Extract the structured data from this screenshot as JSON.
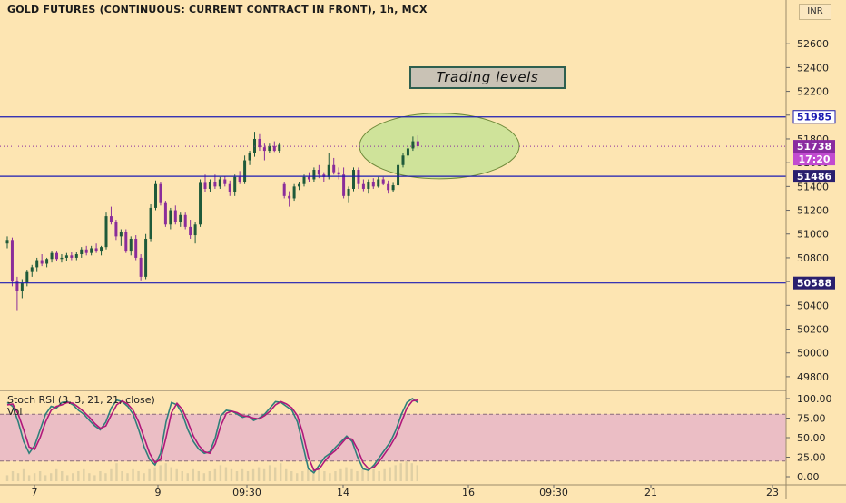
{
  "title": "GOLD FUTURES (CONTINUOUS: CURRENT CONTRACT IN FRONT), 1h, MCX",
  "currency": "INR",
  "annotation": "Trading levels",
  "colors": {
    "background": "#fde5b2",
    "up_candle": "#1f5a3a",
    "down_candle": "#8b2d9a",
    "level_line": "#1b1bb3",
    "zone_fill": "#cfe39a",
    "stoch_k": "#2f7f7a",
    "stoch_d": "#b0187a",
    "stoch_band": "#e9b9c6",
    "price_label": "#8a2ba0"
  },
  "chart_data": [
    {
      "type": "candlestick",
      "ylim": [
        49700,
        52800
      ],
      "y_ticks": [
        49800,
        50000,
        50200,
        50400,
        50600,
        50800,
        51000,
        51200,
        51400,
        51600,
        51800,
        52000,
        52200,
        52400,
        52600
      ],
      "x_ticks": [
        "7",
        "9",
        "09:30",
        "14",
        "16",
        "09:30",
        "21",
        "23"
      ],
      "horizontal_levels": [
        51985,
        51486,
        50588
      ],
      "price_labels": [
        {
          "text": "51985",
          "kind": "level"
        },
        {
          "text": "51738",
          "kind": "last"
        },
        {
          "text": "17:20",
          "kind": "countdown"
        },
        {
          "text": "51486",
          "kind": "level"
        },
        {
          "text": "50588",
          "kind": "level"
        }
      ],
      "last_price": 51738,
      "highlight_zone": {
        "price_low": 51480,
        "price_high": 52000
      },
      "candles": [
        [
          50920,
          50980,
          50880,
          50950
        ],
        [
          50950,
          50970,
          50560,
          50600
        ],
        [
          50600,
          50640,
          50360,
          50520
        ],
        [
          50520,
          50620,
          50460,
          50590
        ],
        [
          50590,
          50700,
          50560,
          50680
        ],
        [
          50680,
          50740,
          50640,
          50720
        ],
        [
          50720,
          50800,
          50680,
          50780
        ],
        [
          50780,
          50830,
          50730,
          50750
        ],
        [
          50750,
          50800,
          50720,
          50790
        ],
        [
          50790,
          50860,
          50760,
          50840
        ],
        [
          50840,
          50860,
          50770,
          50790
        ],
        [
          50790,
          50830,
          50760,
          50800
        ],
        [
          50800,
          50840,
          50770,
          50820
        ],
        [
          50820,
          50850,
          50780,
          50800
        ],
        [
          50800,
          50850,
          50780,
          50830
        ],
        [
          50830,
          50890,
          50800,
          50870
        ],
        [
          50870,
          50900,
          50820,
          50840
        ],
        [
          50840,
          50900,
          50820,
          50880
        ],
        [
          50880,
          50920,
          50840,
          50860
        ],
        [
          50860,
          50900,
          50820,
          50890
        ],
        [
          50890,
          51180,
          50870,
          51150
        ],
        [
          51150,
          51230,
          51080,
          51100
        ],
        [
          51100,
          51120,
          50950,
          50980
        ],
        [
          50980,
          51040,
          50900,
          51020
        ],
        [
          51020,
          51040,
          50840,
          50860
        ],
        [
          50860,
          50980,
          50820,
          50960
        ],
        [
          50960,
          50990,
          50780,
          50800
        ],
        [
          50800,
          50830,
          50610,
          50640
        ],
        [
          50640,
          51000,
          50620,
          50960
        ],
        [
          50960,
          51250,
          50940,
          51220
        ],
        [
          51220,
          51450,
          51200,
          51420
        ],
        [
          51420,
          51440,
          51240,
          51260
        ],
        [
          51260,
          51280,
          51060,
          51080
        ],
        [
          51080,
          51220,
          51040,
          51200
        ],
        [
          51200,
          51240,
          51080,
          51100
        ],
        [
          51100,
          51180,
          51060,
          51160
        ],
        [
          51160,
          51180,
          51040,
          51060
        ],
        [
          51060,
          51120,
          50960,
          50990
        ],
        [
          50990,
          51100,
          50920,
          51080
        ],
        [
          51080,
          51460,
          51060,
          51430
        ],
        [
          51430,
          51500,
          51350,
          51380
        ],
        [
          51380,
          51460,
          51350,
          51440
        ],
        [
          51440,
          51500,
          51380,
          51400
        ],
        [
          51400,
          51480,
          51380,
          51460
        ],
        [
          51460,
          51490,
          51400,
          51420
        ],
        [
          51420,
          51450,
          51320,
          51350
        ],
        [
          51350,
          51500,
          51320,
          51480
        ],
        [
          51480,
          51530,
          51420,
          51440
        ],
        [
          51440,
          51660,
          51420,
          51620
        ],
        [
          51620,
          51700,
          51580,
          51680
        ],
        [
          51680,
          51860,
          51650,
          51800
        ],
        [
          51800,
          51840,
          51700,
          51730
        ],
        [
          51730,
          51760,
          51620,
          51700
        ],
        [
          51700,
          51760,
          51680,
          51740
        ],
        [
          51740,
          51780,
          51690,
          51700
        ],
        [
          51700,
          51770,
          51680,
          51750
        ],
        [
          51420,
          51440,
          51300,
          51320
        ],
        [
          51320,
          51360,
          51230,
          51300
        ],
        [
          51300,
          51420,
          51280,
          51400
        ],
        [
          51400,
          51440,
          51370,
          51420
        ],
        [
          51420,
          51500,
          51400,
          51480
        ],
        [
          51480,
          51520,
          51440,
          51460
        ],
        [
          51460,
          51560,
          51440,
          51540
        ],
        [
          51540,
          51580,
          51470,
          51500
        ],
        [
          51500,
          51520,
          51440,
          51480
        ],
        [
          51480,
          51680,
          51460,
          51580
        ],
        [
          51580,
          51640,
          51500,
          51520
        ],
        [
          51520,
          51560,
          51460,
          51500
        ],
        [
          51500,
          51560,
          51300,
          51320
        ],
        [
          51320,
          51400,
          51260,
          51380
        ],
        [
          51380,
          51560,
          51360,
          51540
        ],
        [
          51540,
          51560,
          51380,
          51420
        ],
        [
          51420,
          51460,
          51360,
          51380
        ],
        [
          51380,
          51460,
          51340,
          51440
        ],
        [
          51440,
          51470,
          51380,
          51400
        ],
        [
          51400,
          51480,
          51390,
          51460
        ],
        [
          51460,
          51480,
          51410,
          51420
        ],
        [
          51420,
          51450,
          51340,
          51370
        ],
        [
          51370,
          51430,
          51350,
          51410
        ],
        [
          51410,
          51600,
          51400,
          51580
        ],
        [
          51580,
          51680,
          51560,
          51660
        ],
        [
          51660,
          51740,
          51640,
          51720
        ],
        [
          51720,
          51820,
          51700,
          51780
        ],
        [
          51780,
          51830,
          51720,
          51738
        ]
      ]
    },
    {
      "type": "line",
      "title": "Stoch RSI (3, 3, 21, 21, close)",
      "secondary_label": "Vol",
      "ylim": [
        0,
        100
      ],
      "y_ticks": [
        0,
        25,
        50,
        75,
        100
      ],
      "y_tick_labels": [
        "0.00",
        "25.00",
        "50.00",
        "75.00",
        "100.00"
      ],
      "band": [
        20,
        80
      ],
      "series": [
        {
          "values": [
            95,
            90,
            70,
            45,
            30,
            40,
            60,
            80,
            90,
            88,
            95,
            96,
            92,
            85,
            80,
            72,
            65,
            60,
            70,
            88,
            98,
            96,
            90,
            80,
            60,
            38,
            22,
            15,
            30,
            70,
            95,
            92,
            80,
            60,
            45,
            35,
            30,
            32,
            50,
            78,
            85,
            84,
            80,
            76,
            78,
            72,
            75,
            80,
            88,
            96,
            95,
            90,
            85,
            70,
            40,
            10,
            5,
            15,
            25,
            30,
            38,
            45,
            52,
            45,
            25,
            10,
            8,
            15,
            25,
            35,
            45,
            60,
            80,
            95,
            100,
            95
          ]
        },
        {
          "values": [
            92,
            93,
            80,
            60,
            38,
            35,
            50,
            70,
            85,
            90,
            92,
            95,
            94,
            89,
            83,
            76,
            68,
            62,
            65,
            79,
            92,
            97,
            93,
            85,
            70,
            50,
            30,
            18,
            22,
            50,
            82,
            94,
            86,
            70,
            52,
            40,
            32,
            30,
            42,
            65,
            81,
            84,
            82,
            78,
            77,
            75,
            74,
            78,
            84,
            92,
            96,
            93,
            88,
            78,
            55,
            25,
            8,
            10,
            20,
            28,
            34,
            42,
            50,
            48,
            35,
            18,
            10,
            12,
            20,
            30,
            40,
            52,
            70,
            88,
            97,
            98
          ]
        }
      ],
      "volume": [
        3,
        5,
        4,
        6,
        3,
        4,
        5,
        3,
        4,
        6,
        5,
        3,
        4,
        5,
        6,
        4,
        3,
        5,
        4,
        6,
        9,
        5,
        4,
        6,
        5,
        4,
        6,
        7,
        8,
        9,
        7,
        6,
        5,
        4,
        6,
        5,
        4,
        5,
        6,
        8,
        7,
        6,
        5,
        6,
        5,
        6,
        7,
        6,
        8,
        7,
        9,
        6,
        5,
        4,
        5,
        6,
        7,
        6,
        5,
        4,
        5,
        6,
        7,
        6,
        5,
        6,
        7,
        6,
        5,
        6,
        7,
        8,
        9,
        10,
        9,
        8
      ]
    }
  ]
}
